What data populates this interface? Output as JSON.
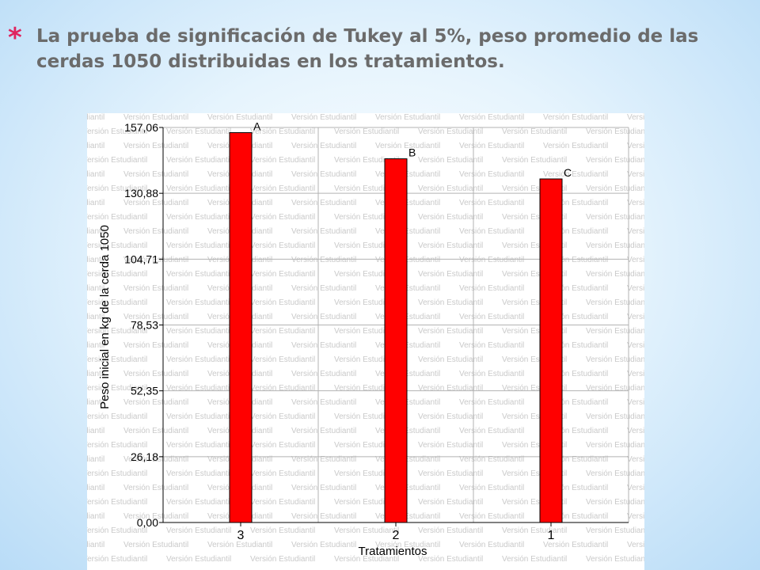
{
  "slide": {
    "bullet": "*",
    "title": "La prueba de significación de Tukey al 5%, peso promedio de las cerdas 1050 distribuidas en los tratamientos."
  },
  "chart_data": {
    "type": "bar",
    "categories": [
      "3",
      "2",
      "1"
    ],
    "values": [
      155.0,
      144.6,
      136.6
    ],
    "bar_labels": [
      "A",
      "B",
      "C"
    ],
    "ylabel": "Peso inicial en kg de la cerda 1050",
    "xlabel": "Tratamientos",
    "yticks": [
      "0,00",
      "26,18",
      "52,35",
      "78,53",
      "104,71",
      "130,88",
      "157,06"
    ],
    "ylim": [
      0,
      157.06
    ],
    "grid": true,
    "bar_color": "#ff0000",
    "watermark": "Versión Estudiantil"
  }
}
